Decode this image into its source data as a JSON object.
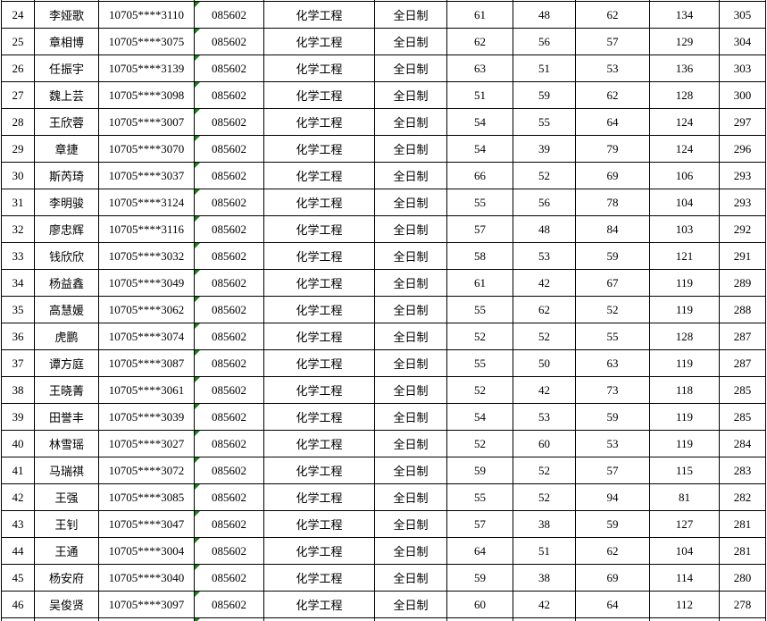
{
  "colors": {
    "indicator_green": "#168216",
    "grid_border": "#000000",
    "background": "#ffffff",
    "text": "#000000"
  },
  "table": {
    "fields": [
      "rank",
      "name",
      "candidate_id",
      "major_code",
      "major_name",
      "study_type",
      "score_1",
      "score_2",
      "score_3",
      "score_4",
      "total"
    ],
    "rows": [
      [
        "24",
        "李娅歌",
        "10705****3110",
        "085602",
        "化学工程",
        "全日制",
        "61",
        "48",
        "62",
        "134",
        "305"
      ],
      [
        "25",
        "章相博",
        "10705****3075",
        "085602",
        "化学工程",
        "全日制",
        "62",
        "56",
        "57",
        "129",
        "304"
      ],
      [
        "26",
        "任振宇",
        "10705****3139",
        "085602",
        "化学工程",
        "全日制",
        "63",
        "51",
        "53",
        "136",
        "303"
      ],
      [
        "27",
        "魏上芸",
        "10705****3098",
        "085602",
        "化学工程",
        "全日制",
        "51",
        "59",
        "62",
        "128",
        "300"
      ],
      [
        "28",
        "王欣蓉",
        "10705****3007",
        "085602",
        "化学工程",
        "全日制",
        "54",
        "55",
        "64",
        "124",
        "297"
      ],
      [
        "29",
        "章捷",
        "10705****3070",
        "085602",
        "化学工程",
        "全日制",
        "54",
        "39",
        "79",
        "124",
        "296"
      ],
      [
        "30",
        "斯芮琦",
        "10705****3037",
        "085602",
        "化学工程",
        "全日制",
        "66",
        "52",
        "69",
        "106",
        "293"
      ],
      [
        "31",
        "李明骏",
        "10705****3124",
        "085602",
        "化学工程",
        "全日制",
        "55",
        "56",
        "78",
        "104",
        "293"
      ],
      [
        "32",
        "廖忠辉",
        "10705****3116",
        "085602",
        "化学工程",
        "全日制",
        "57",
        "48",
        "84",
        "103",
        "292"
      ],
      [
        "33",
        "钱欣欣",
        "10705****3032",
        "085602",
        "化学工程",
        "全日制",
        "58",
        "53",
        "59",
        "121",
        "291"
      ],
      [
        "34",
        "杨益鑫",
        "10705****3049",
        "085602",
        "化学工程",
        "全日制",
        "61",
        "42",
        "67",
        "119",
        "289"
      ],
      [
        "35",
        "高慧媛",
        "10705****3062",
        "085602",
        "化学工程",
        "全日制",
        "55",
        "62",
        "52",
        "119",
        "288"
      ],
      [
        "36",
        "虎鹏",
        "10705****3074",
        "085602",
        "化学工程",
        "全日制",
        "52",
        "52",
        "55",
        "128",
        "287"
      ],
      [
        "37",
        "谭方庭",
        "10705****3087",
        "085602",
        "化学工程",
        "全日制",
        "55",
        "50",
        "63",
        "119",
        "287"
      ],
      [
        "38",
        "王晓菁",
        "10705****3061",
        "085602",
        "化学工程",
        "全日制",
        "52",
        "42",
        "73",
        "118",
        "285"
      ],
      [
        "39",
        "田誉丰",
        "10705****3039",
        "085602",
        "化学工程",
        "全日制",
        "54",
        "53",
        "59",
        "119",
        "285"
      ],
      [
        "40",
        "林雪瑶",
        "10705****3027",
        "085602",
        "化学工程",
        "全日制",
        "52",
        "60",
        "53",
        "119",
        "284"
      ],
      [
        "41",
        "马瑞祺",
        "10705****3072",
        "085602",
        "化学工程",
        "全日制",
        "59",
        "52",
        "57",
        "115",
        "283"
      ],
      [
        "42",
        "王强",
        "10705****3085",
        "085602",
        "化学工程",
        "全日制",
        "55",
        "52",
        "94",
        "81",
        "282"
      ],
      [
        "43",
        "王钊",
        "10705****3047",
        "085602",
        "化学工程",
        "全日制",
        "57",
        "38",
        "59",
        "127",
        "281"
      ],
      [
        "44",
        "王通",
        "10705****3004",
        "085602",
        "化学工程",
        "全日制",
        "64",
        "51",
        "62",
        "104",
        "281"
      ],
      [
        "45",
        "杨安府",
        "10705****3040",
        "085602",
        "化学工程",
        "全日制",
        "59",
        "38",
        "69",
        "114",
        "280"
      ],
      [
        "46",
        "吴俊贤",
        "10705****3097",
        "085602",
        "化学工程",
        "全日制",
        "60",
        "42",
        "64",
        "112",
        "278"
      ]
    ]
  }
}
